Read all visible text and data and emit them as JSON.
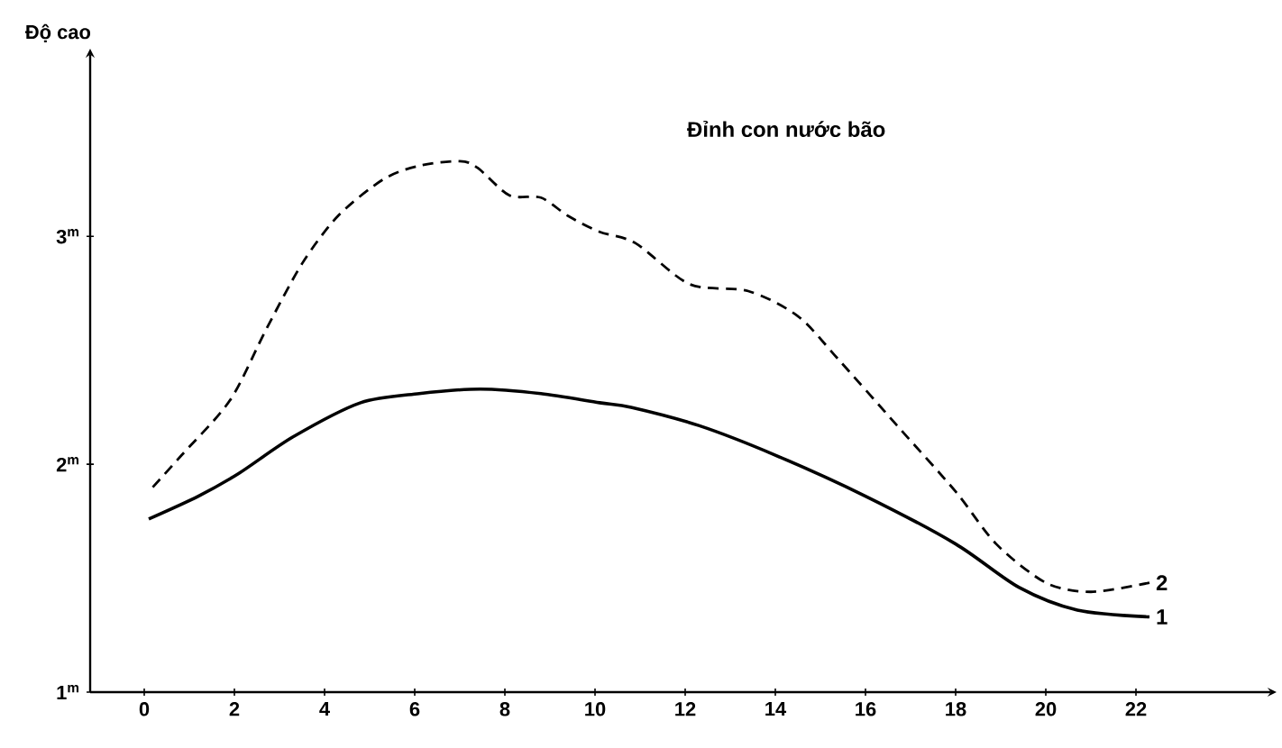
{
  "chart_data": {
    "type": "line",
    "ylabel": "Độ cao",
    "annotations": [
      "Đỉnh con nước bão"
    ],
    "xlim": [
      -1.2,
      25
    ],
    "ylim": [
      1,
      3.8
    ],
    "xticks": [
      0,
      2,
      4,
      6,
      8,
      10,
      12,
      14,
      16,
      18,
      20,
      22
    ],
    "yticks": [
      {
        "value": 1,
        "label": "1$^{m}$"
      },
      {
        "value": 2,
        "label": "2$^{m}$"
      },
      {
        "value": 3,
        "label": "3$^{m}$"
      }
    ],
    "grid": false,
    "legend": false,
    "marker": "none",
    "series": [
      {
        "name": "1",
        "color": "#000000",
        "line_style": "solid",
        "x": [
          0.1,
          1.2,
          2.1,
          3.3,
          4.8,
          6.1,
          7.45,
          8.8,
          10.1,
          10.8,
          12.3,
          14.0,
          16.0,
          18.0,
          19.4,
          20.7,
          22.3
        ],
        "values": [
          1.76,
          1.86,
          1.96,
          2.12,
          2.27,
          2.31,
          2.33,
          2.31,
          2.27,
          2.25,
          2.17,
          2.04,
          1.86,
          1.65,
          1.46,
          1.36,
          1.33
        ]
      },
      {
        "name": "2",
        "color": "#000000",
        "line_style": "dashed",
        "x": [
          0.1,
          0.83,
          1.9,
          2.7,
          3.5,
          4.3,
          5.3,
          6.1,
          7.0,
          7.4,
          8.1,
          8.8,
          9.4,
          10.1,
          10.9,
          12.1,
          13.4,
          14.5,
          15.4,
          16.7,
          18.0,
          18.9,
          20.0,
          21.0,
          22.3
        ],
        "values": [
          1.88,
          2.04,
          2.28,
          2.59,
          2.88,
          3.09,
          3.25,
          3.31,
          3.33,
          3.3,
          3.18,
          3.17,
          3.09,
          3.02,
          2.97,
          2.79,
          2.76,
          2.65,
          2.46,
          2.17,
          1.88,
          1.65,
          1.48,
          1.44,
          1.48
        ]
      }
    ]
  }
}
